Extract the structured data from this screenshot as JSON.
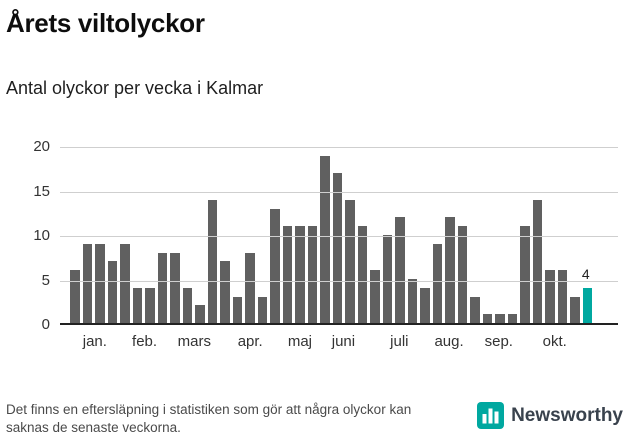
{
  "header": {
    "title": "Årets viltolyckor",
    "subtitle": "Antal olyckor per vecka i Kalmar"
  },
  "chart_data": {
    "type": "bar",
    "title": "Årets viltolyckor",
    "subtitle": "Antal olyckor per vecka i Kalmar",
    "ylabel": "",
    "xlabel": "",
    "ylim": [
      0,
      20
    ],
    "yticks": [
      0,
      5,
      10,
      15,
      20
    ],
    "grid": "horizontal",
    "values": [
      6,
      9,
      9,
      7,
      9,
      4,
      4,
      8,
      8,
      4,
      2,
      14,
      7,
      3,
      8,
      3,
      13,
      11,
      11,
      11,
      19,
      17,
      14,
      11,
      6,
      10,
      12,
      5,
      4,
      9,
      12,
      11,
      3,
      1,
      1,
      1,
      11,
      14,
      6,
      6,
      3,
      4
    ],
    "months": [
      {
        "label": "jan.",
        "week": 1.5
      },
      {
        "label": "feb.",
        "week": 5.5
      },
      {
        "label": "mars",
        "week": 9.5
      },
      {
        "label": "apr.",
        "week": 14
      },
      {
        "label": "maj",
        "week": 18
      },
      {
        "label": "juni",
        "week": 21.5
      },
      {
        "label": "juli",
        "week": 26
      },
      {
        "label": "aug.",
        "week": 30
      },
      {
        "label": "sep.",
        "week": 34
      },
      {
        "label": "okt.",
        "week": 38.5
      }
    ],
    "bar_color": "#606060",
    "highlight_color": "#00a8a0",
    "highlight_index": 41,
    "annotation": {
      "index": 41,
      "text": "4"
    }
  },
  "footer": {
    "note": "Det finns en eftersläpning i statistiken som gör att några olyckor kan saknas de senaste veckorna.",
    "brand": "Newsworthy"
  }
}
